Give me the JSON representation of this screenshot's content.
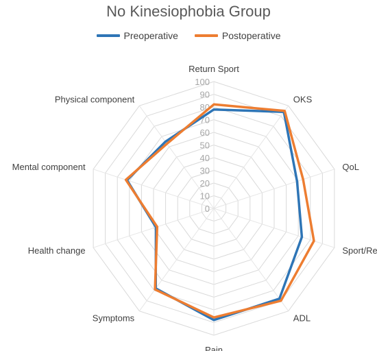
{
  "chart_data": {
    "type": "radar",
    "title": "No Kinesiophobia Group",
    "categories": [
      "Return Sport",
      "OKS",
      "QoL",
      "Sport/Rec",
      "ADL",
      "Pain",
      "Symptoms",
      "Health change",
      "Mental component",
      "Physical component"
    ],
    "rmin": 0,
    "rmax": 100,
    "ticks": [
      0,
      10,
      20,
      30,
      40,
      50,
      60,
      70,
      80,
      90,
      100
    ],
    "legend_position": "top",
    "series": [
      {
        "name": "Preoperative",
        "color": "#2E75B6",
        "values": [
          78,
          94,
          69,
          73,
          88,
          88,
          78,
          48,
          72,
          65
        ]
      },
      {
        "name": "Postoperative",
        "color": "#ED7D31",
        "values": [
          82,
          95,
          74,
          83,
          90,
          86,
          79,
          47,
          73,
          63
        ]
      }
    ]
  }
}
